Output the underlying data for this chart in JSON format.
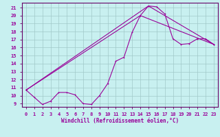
{
  "xlabel": "Windchill (Refroidissement éolien,°C)",
  "bg_color": "#c8f0f0",
  "grid_color": "#a0c8c8",
  "line_color": "#990099",
  "spine_color": "#660066",
  "xlim": [
    -0.5,
    23.5
  ],
  "ylim": [
    8.6,
    21.6
  ],
  "xticks": [
    0,
    1,
    2,
    3,
    4,
    5,
    6,
    7,
    8,
    9,
    10,
    11,
    12,
    13,
    14,
    15,
    16,
    17,
    18,
    19,
    20,
    21,
    22,
    23
  ],
  "yticks": [
    9,
    10,
    11,
    12,
    13,
    14,
    15,
    16,
    17,
    18,
    19,
    20,
    21
  ],
  "series1_x": [
    0,
    1,
    2,
    3,
    4,
    5,
    6,
    7,
    8,
    9,
    10,
    11,
    12,
    13,
    14,
    15,
    16,
    17,
    18,
    19,
    20,
    21,
    22,
    23
  ],
  "series1_y": [
    10.7,
    9.8,
    8.9,
    9.3,
    10.4,
    10.4,
    10.1,
    9.0,
    8.9,
    10.0,
    11.5,
    14.3,
    14.8,
    17.9,
    20.0,
    21.2,
    21.1,
    20.2,
    17.1,
    16.4,
    16.5,
    17.1,
    17.1,
    16.4
  ],
  "series2_x": [
    0,
    14,
    23
  ],
  "series2_y": [
    10.7,
    20.0,
    16.4
  ],
  "series3_x": [
    0,
    15,
    23
  ],
  "series3_y": [
    10.7,
    21.2,
    16.4
  ],
  "tick_fontsize": 5.0,
  "xlabel_fontsize": 5.5,
  "marker_size": 2.0,
  "line_width": 0.8
}
